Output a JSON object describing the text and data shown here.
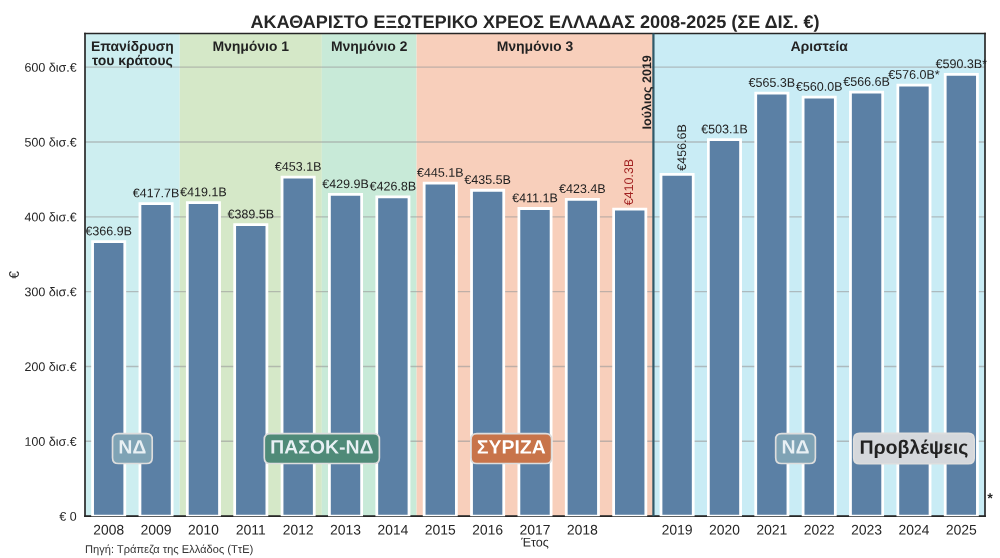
{
  "chart_data": {
    "type": "bar",
    "title": "ΑΚΑΘΑΡΙΣΤΟ ΕΞΩΤΕΡΙΚΟ ΧΡΕΟΣ ΕΛΛΑΔΑΣ 2008-2025 (ΣΕ ΔΙΣ. €)",
    "xlabel": "Έτος",
    "ylabel": "€",
    "categories": [
      "2008",
      "2009",
      "2010",
      "2011",
      "2012",
      "2013",
      "2014",
      "2015",
      "2016",
      "2017",
      "2018",
      null,
      "2019",
      "2020",
      "2021",
      "2022",
      "2023",
      "2024",
      "2025"
    ],
    "series": [
      {
        "color": "#5b80a5",
        "values": [
          366.9,
          417.7,
          419.1,
          389.5,
          453.1,
          429.9,
          426.8,
          445.1,
          435.5,
          411.1,
          423.4,
          410.3,
          456.6,
          503.1,
          565.3,
          560.0,
          566.6,
          576.0,
          590.3
        ],
        "value_labels": [
          "€366.9B",
          "€417.7B",
          "€419.1B",
          "€389.5B",
          "€453.1B",
          "€429.9B",
          "€426.8B",
          "€445.1B",
          "€435.5B",
          "€411.1B",
          "€423.4B",
          "€410.3B",
          "€456.6B",
          "€503.1B",
          "€565.3B",
          "€560.0B",
          "€566.6B",
          "€576.0B*",
          "€590.3B*"
        ]
      }
    ],
    "ylim": [
      0,
      645
    ],
    "yticks": [
      {
        "value": 0,
        "label": "€ 0"
      },
      {
        "value": 100,
        "label": "100 δισ.€"
      },
      {
        "value": 200,
        "label": "200 δισ.€"
      },
      {
        "value": 300,
        "label": "300 δισ.€"
      },
      {
        "value": 400,
        "label": "400 δισ.€"
      },
      {
        "value": 500,
        "label": "500 δισ.€"
      },
      {
        "value": 600,
        "label": "600 δισ.€"
      }
    ],
    "grid": "y",
    "bands": [
      {
        "axis": "x",
        "from": "2008",
        "to": "2009",
        "label": "Επανίδρυση\nτου κράτους",
        "color": "#cdeef0"
      },
      {
        "axis": "x",
        "from": "2010",
        "to": "2012",
        "label": "Μνημόνιο 1",
        "color": "#d5e8c8"
      },
      {
        "axis": "x",
        "from": "2013",
        "to": "2014",
        "label": "Μνημόνιο 2",
        "color": "#c8ead8"
      },
      {
        "axis": "x",
        "from": "2015",
        "to": "2019",
        "label": "Μνημόνιο 3",
        "color": "#f8cfbb"
      },
      {
        "axis": "x",
        "from": "2019",
        "to": "2025",
        "label": "Αριστεία",
        "color": "#c9ecf5"
      }
    ],
    "ref_lines": [
      {
        "axis": "x",
        "value": "2019",
        "label": "Ιούλιος 2019",
        "color": "#2f5a6a"
      }
    ],
    "annotations": [
      "ΝΔ",
      "ΠΑΣΟΚ-ΝΔ",
      "ΣΥΡΙΖΑ",
      "ΝΔ",
      "Προβλέψεις",
      "*",
      "Πηγή: Τράπεζα της Ελλάδος (ΤτΕ)"
    ]
  }
}
